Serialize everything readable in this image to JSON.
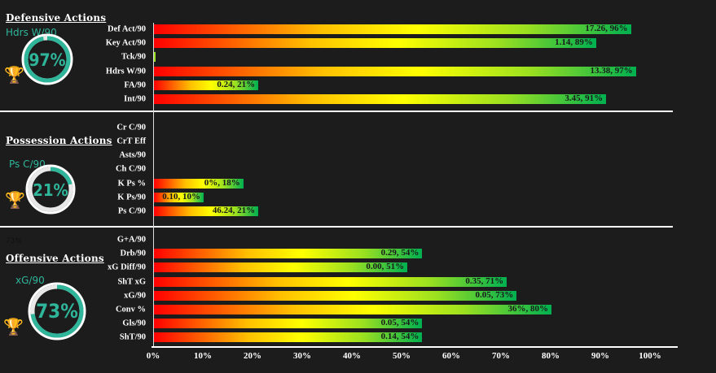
{
  "chart_data": {
    "type": "bar",
    "orientation": "horizontal",
    "xlabel": "",
    "ylabel": "",
    "xlim": [
      0,
      100
    ],
    "x_ticks": [
      "0%",
      "10%",
      "20%",
      "30%",
      "40%",
      "50%",
      "60%",
      "70%",
      "80%",
      "90%",
      "100%"
    ],
    "colors": {
      "start": "#ff0000",
      "mid": "#ffff00",
      "end": "#00b050",
      "kpi": "#2fb59a"
    },
    "groups": [
      {
        "title": "Defensive Actions",
        "kpi_label": "Hdrs W/90",
        "kpi_value": "97%",
        "kpi_fraction": 0.97,
        "rows": [
          {
            "label": "Def Act/90",
            "pct": 96,
            "text": "17.26, 96%"
          },
          {
            "label": "Key Act/90",
            "pct": 89,
            "text": "1.14, 89%"
          },
          {
            "label": "Tck/90",
            "pct": 0.3,
            "text": ""
          },
          {
            "label": "Hdrs W/90",
            "pct": 97,
            "text": "13.38, 97%"
          },
          {
            "label": "FA/90",
            "pct": 21,
            "text": "0.24, 21%"
          },
          {
            "label": "Int/90",
            "pct": 91,
            "text": "3.45, 91%"
          }
        ]
      },
      {
        "title": "Possession Actions",
        "kpi_label": "Ps C/90",
        "kpi_value": "21%",
        "kpi_fraction": 0.21,
        "rows": [
          {
            "label": "Cr C/90",
            "pct": 0,
            "text": ""
          },
          {
            "label": "CrT Eff",
            "pct": 0,
            "text": ""
          },
          {
            "label": "Asts/90",
            "pct": 0,
            "text": ""
          },
          {
            "label": "Ch C/90",
            "pct": 0,
            "text": ""
          },
          {
            "label": "K Ps %",
            "pct": 18,
            "text": "0%, 18%"
          },
          {
            "label": "K Ps/90",
            "pct": 10,
            "text": "0.10, 10%"
          },
          {
            "label": "Ps C/90",
            "pct": 21,
            "text": "46.24, 21%"
          }
        ]
      },
      {
        "title": "Offensive Actions",
        "kpi_label": "xG/90",
        "kpi_value": "73%",
        "kpi_fraction": 0.73,
        "note": "73%",
        "rows": [
          {
            "label": "G+A/90",
            "pct": 0,
            "text": ""
          },
          {
            "label": "Drb/90",
            "pct": 54,
            "text": "0.29, 54%"
          },
          {
            "label": "xG Diff/90",
            "pct": 51,
            "text": "0.00, 51%"
          },
          {
            "label": "ShT xG",
            "pct": 71,
            "text": "0.35, 71%"
          },
          {
            "label": "xG/90",
            "pct": 73,
            "text": "0.05, 73%"
          },
          {
            "label": "Conv %",
            "pct": 80,
            "text": "36%, 80%"
          },
          {
            "label": "Gls/90",
            "pct": 54,
            "text": "0.05, 54%"
          },
          {
            "label": "ShT/90",
            "pct": 54,
            "text": "0.14, 54%"
          }
        ]
      }
    ]
  }
}
